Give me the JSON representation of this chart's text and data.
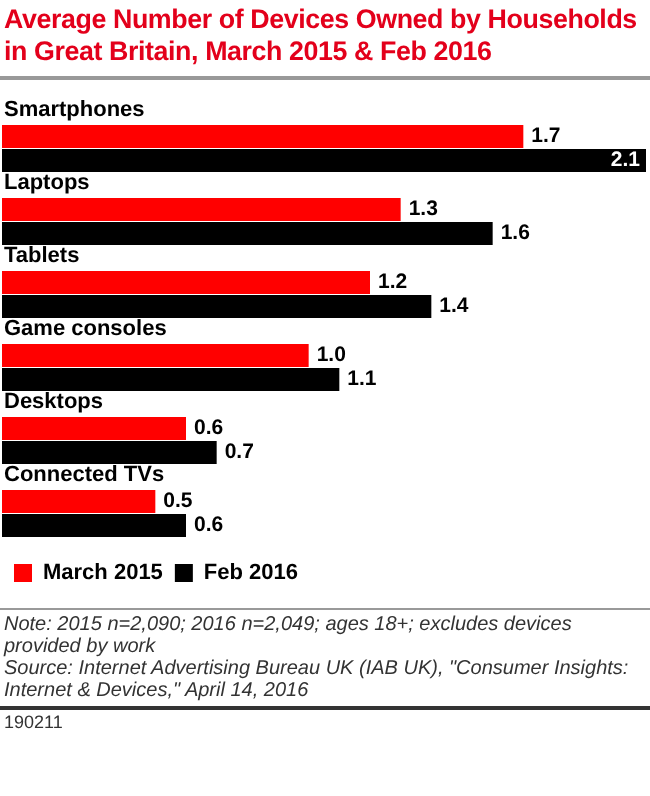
{
  "chart_data": {
    "type": "bar",
    "orientation": "horizontal",
    "title": "Average Number of Devices Owned by Households in Great Britain, March 2015 & Feb 2016",
    "categories": [
      "Smartphones",
      "Laptops",
      "Tablets",
      "Game consoles",
      "Desktops",
      "Connected TVs"
    ],
    "series": [
      {
        "name": "March 2015",
        "color": "#ff0000",
        "values": [
          1.7,
          1.3,
          1.2,
          1.0,
          0.6,
          0.5
        ],
        "value_labels": [
          "1.7",
          "1.3",
          "1.2",
          "1.0",
          "0.6",
          "0.5"
        ]
      },
      {
        "name": "Feb 2016",
        "color": "#000000",
        "values": [
          2.1,
          1.6,
          1.4,
          1.1,
          0.7,
          0.6
        ],
        "value_labels": [
          "2.1",
          "1.6",
          "1.4",
          "1.1",
          "0.7",
          "0.6"
        ]
      }
    ],
    "tick_labels": false,
    "legend": "bottom",
    "annotations": [
      "Note: 2015 n=2,090; 2016 n=2,049; ages 18+; excludes devices provided by work",
      "Source: Internet Advertising Bureau UK (IAB UK), \"Consumer Insights: Internet & Devices,\" April 14, 2016",
      "190211"
    ]
  }
}
